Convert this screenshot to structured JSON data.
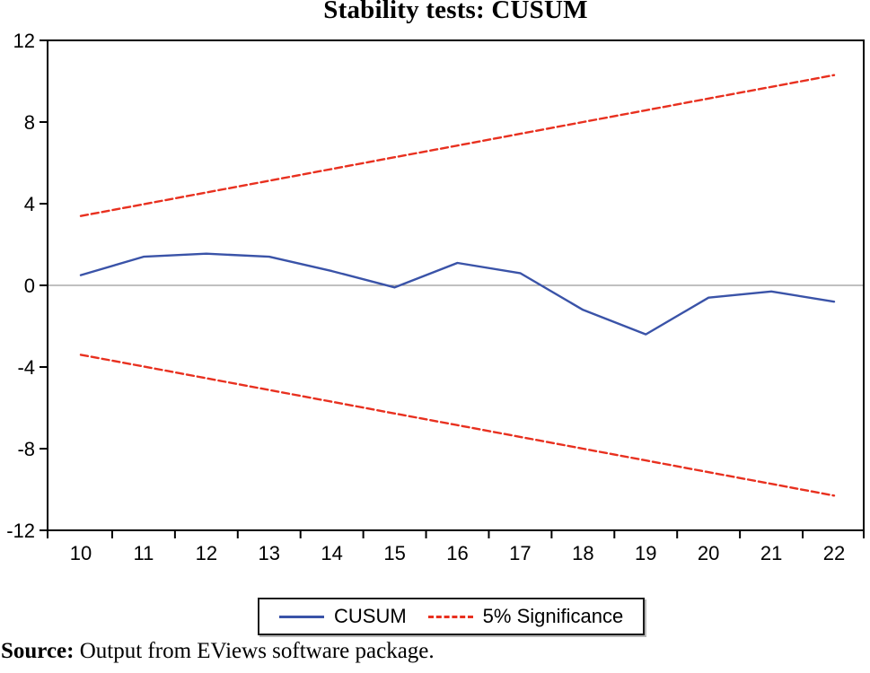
{
  "title": "Stability tests: CUSUM",
  "source": {
    "label": "Source:",
    "text": " Output from EViews software package."
  },
  "legend": {
    "items": [
      {
        "label": "CUSUM",
        "color": "#3a53a8",
        "style": "solid"
      },
      {
        "label": "5% Significance",
        "color": "#e8301f",
        "style": "dashed"
      }
    ]
  },
  "colors": {
    "cusum_line": "#3a53a8",
    "significance_line": "#e8301f",
    "zero_line": "#9a9a9a",
    "axis": "#000000",
    "background": "#ffffff"
  },
  "chart_data": {
    "type": "line",
    "title": "Stability tests: CUSUM",
    "x": [
      10,
      11,
      12,
      13,
      14,
      15,
      16,
      17,
      18,
      19,
      20,
      21,
      22
    ],
    "series": [
      {
        "name": "CUSUM",
        "color": "#3a53a8",
        "style": "solid",
        "values": [
          0.5,
          1.4,
          1.55,
          1.4,
          0.7,
          -0.1,
          1.1,
          0.6,
          -1.2,
          -2.4,
          -0.6,
          -0.3,
          -0.8
        ]
      },
      {
        "name": "5% Significance (upper)",
        "color": "#e8301f",
        "style": "dashed",
        "values": [
          3.4,
          3.975,
          4.55,
          5.125,
          5.7,
          6.275,
          6.85,
          7.425,
          8.0,
          8.575,
          9.15,
          9.725,
          10.3
        ]
      },
      {
        "name": "5% Significance (lower)",
        "color": "#e8301f",
        "style": "dashed",
        "values": [
          -3.4,
          -3.975,
          -4.55,
          -5.125,
          -5.7,
          -6.275,
          -6.85,
          -7.425,
          -8.0,
          -8.575,
          -9.15,
          -9.725,
          -10.3
        ]
      }
    ],
    "xlabel": "",
    "ylabel": "",
    "ylim": [
      -12,
      12
    ],
    "yticks": [
      12,
      8,
      4,
      0,
      -4,
      -8,
      -12
    ],
    "xticks": [
      10,
      11,
      12,
      13,
      14,
      15,
      16,
      17,
      18,
      19,
      20,
      21,
      22
    ],
    "zero_line": true,
    "grid": false,
    "legend_position": "bottom"
  }
}
